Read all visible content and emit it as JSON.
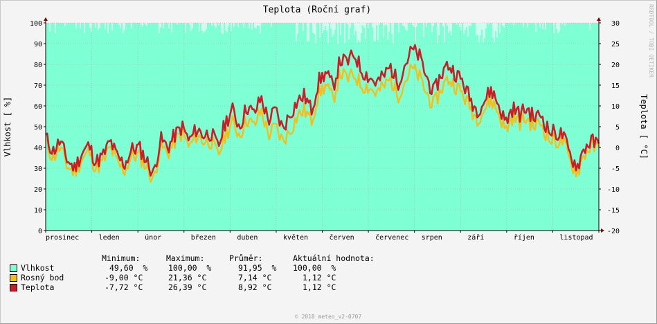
{
  "chart_data": {
    "type": "area",
    "title": "Teplota (Roční graf)",
    "ylabel_left": "Vlhkost [ %]",
    "ylabel_right": "Teplota [ °C]",
    "watermark": "RRDTOOL / TOBI OETIKER",
    "footer": "© 2018 meteo_v2-0707",
    "left_axis": {
      "min": 0,
      "max": 100,
      "ticks": [
        "0",
        "10",
        "20",
        "30",
        "40",
        "50",
        "60",
        "70",
        "80",
        "90",
        "100"
      ]
    },
    "right_axis": {
      "min": -20,
      "max": 30,
      "ticks": [
        "-20",
        "-15",
        "-10",
        "-5",
        "0",
        "5",
        "10",
        "15",
        "20",
        "25",
        "30"
      ]
    },
    "months": [
      "prosinec",
      "leden",
      "únor",
      "březen",
      "duben",
      "květen",
      "červen",
      "červenec",
      "srpen",
      "září",
      "říjen",
      "listopad"
    ],
    "temperature_weekly": [
      2.5,
      -1.0,
      1.5,
      -3.0,
      -5.0,
      -1.5,
      0.5,
      -3.5,
      -2.0,
      1.5,
      -2.5,
      -4.0,
      -0.5,
      0.0,
      -3.0,
      -6.5,
      2.0,
      0.0,
      3.0,
      5.0,
      1.5,
      4.5,
      3.0,
      3.5,
      0.0,
      6.0,
      9.0,
      5.0,
      10.0,
      8.0,
      12.0,
      6.5,
      9.0,
      4.5,
      8.0,
      11.0,
      12.5,
      9.0,
      16.0,
      18.0,
      14.5,
      21.0,
      20.5,
      22.5,
      18.5,
      17.0,
      15.5,
      17.0,
      19.5,
      15.5,
      20.0,
      23.5,
      22.0,
      17.0,
      13.0,
      17.5,
      20.0,
      18.0,
      16.0,
      12.0,
      9.0,
      11.0,
      14.0,
      10.5,
      6.0,
      9.5,
      8.0,
      9.5,
      7.0,
      8.0,
      4.0,
      3.5,
      3.0,
      -2.0,
      -4.5,
      0.0,
      1.5,
      0.5
    ],
    "dew_point_weekly": [
      1.0,
      -2.5,
      0.0,
      -4.5,
      -6.0,
      -3.0,
      -1.0,
      -5.0,
      -3.5,
      0.0,
      -4.0,
      -5.5,
      -2.0,
      -2.0,
      -4.5,
      -8.0,
      0.5,
      -1.5,
      1.5,
      3.5,
      0.0,
      3.0,
      1.5,
      1.5,
      -2.0,
      3.0,
      6.0,
      3.0,
      7.0,
      5.0,
      9.0,
      3.0,
      5.0,
      1.5,
      4.0,
      7.5,
      9.0,
      6.5,
      13.0,
      15.0,
      11.5,
      18.0,
      16.5,
      17.5,
      15.0,
      14.5,
      13.0,
      14.5,
      16.5,
      12.5,
      16.0,
      19.0,
      17.0,
      13.0,
      10.0,
      14.0,
      16.5,
      15.0,
      13.0,
      10.0,
      7.0,
      9.0,
      11.5,
      8.5,
      4.0,
      7.5,
      6.0,
      7.0,
      5.0,
      6.0,
      2.0,
      1.5,
      1.5,
      -3.5,
      -6.0,
      -1.5,
      0.5,
      -0.5
    ],
    "legend_header": {
      "minimum": "Minimum:",
      "maximum": "Maximum:",
      "average": "Průměr:",
      "current": "Aktuální hodnota:"
    },
    "series": [
      {
        "name": "Vlhkost",
        "color": "#7fffd4",
        "minimum": "49,60  %",
        "maximum": "100,00  %",
        "average": "91,95  %",
        "current": "100,00  %"
      },
      {
        "name": "Rosný bod",
        "color": "#f0c020",
        "minimum": "-9,00 °C",
        "maximum": "21,36 °C",
        "average": "7,14 °C",
        "current": "1,12 °C"
      },
      {
        "name": "Teplota",
        "color": "#c81e28",
        "minimum": "-7,72 °C",
        "maximum": "26,39 °C",
        "average": "8,92 °C",
        "current": "1,12 °C"
      }
    ]
  }
}
